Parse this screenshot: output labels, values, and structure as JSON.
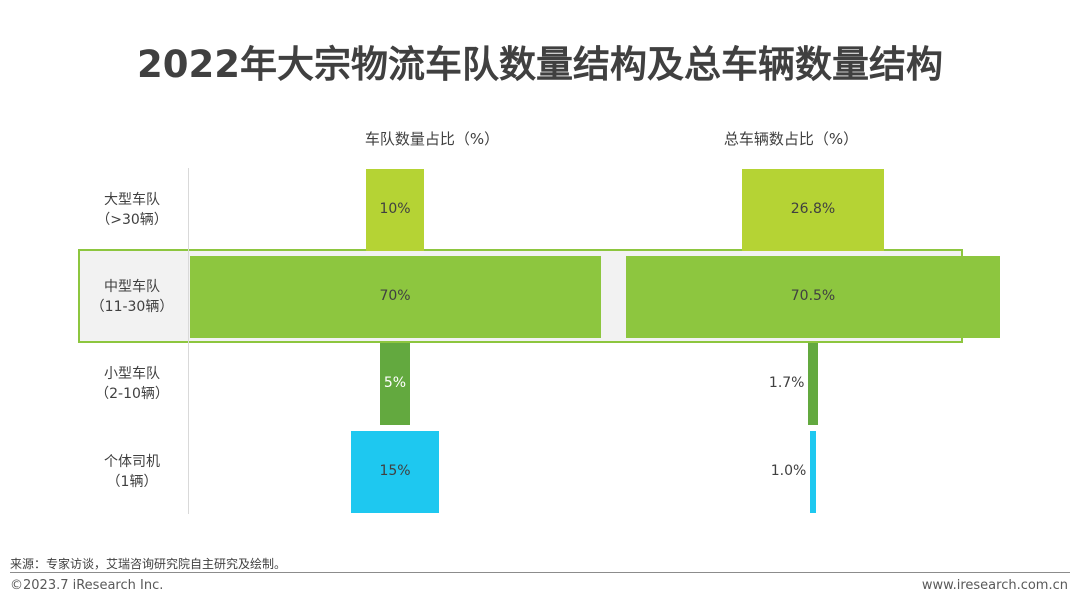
{
  "title": "2022年大宗物流车队数量结构及总车辆数量结构",
  "chart_data": {
    "type": "bar",
    "categories": [
      {
        "line1": "大型车队",
        "line2": "（>30辆）"
      },
      {
        "line1": "中型车队",
        "line2": "（11-30辆）"
      },
      {
        "line1": "小型车队",
        "line2": "（2-10辆）"
      },
      {
        "line1": "个体司机",
        "line2": "（1辆）"
      }
    ],
    "series": [
      {
        "name": "车队数量占比（%）",
        "values": [
          10,
          70,
          5,
          15
        ],
        "labels": [
          "10%",
          "70%",
          "5%",
          "15%"
        ]
      },
      {
        "name": "总车辆数占比（%）",
        "values": [
          26.8,
          70.5,
          1.7,
          1.0
        ],
        "labels": [
          "26.8%",
          "70.5%",
          "1.7%",
          "1.0%"
        ]
      }
    ],
    "colors": [
      "#b5d334",
      "#8dc63f",
      "#63a93f",
      "#1ec8f0"
    ],
    "highlighted_category": "中型车队"
  },
  "footer": {
    "source": "来源：专家访谈，艾瑞咨询研究院自主研究及绘制。",
    "copyright": "©2023.7 iResearch Inc.",
    "website": "www.iresearch.com.cn"
  }
}
